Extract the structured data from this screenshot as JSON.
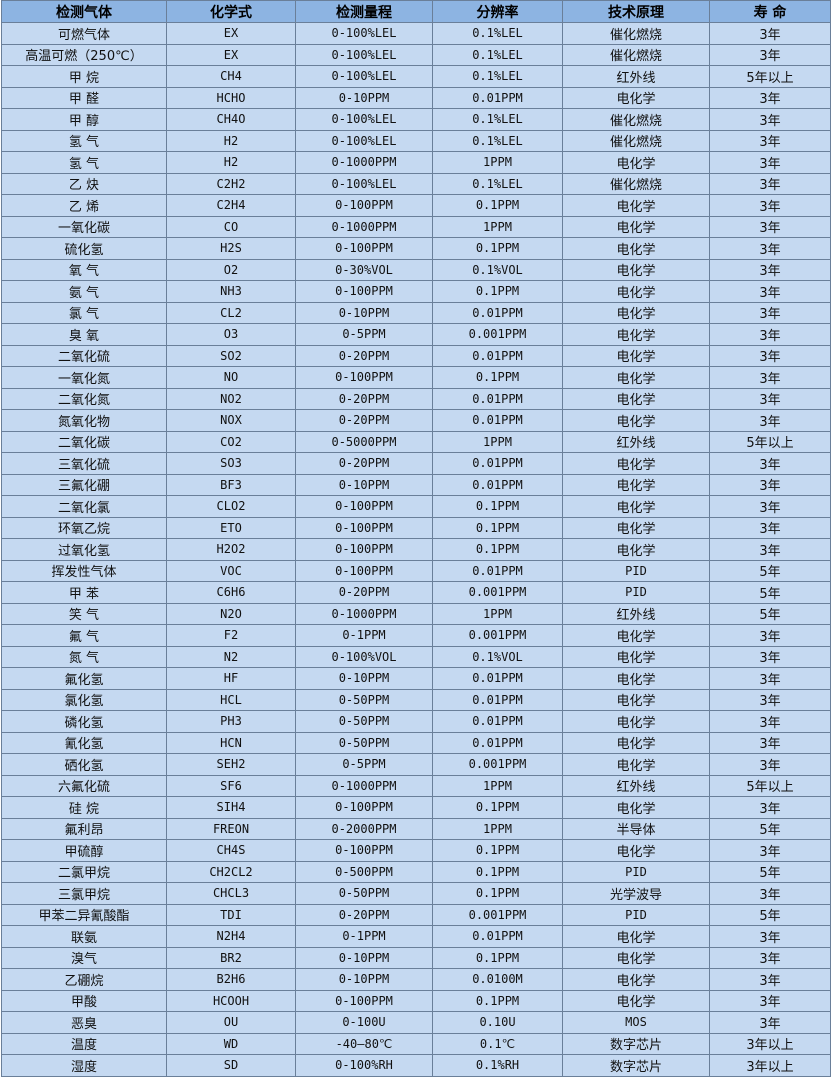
{
  "table": {
    "headers": [
      "检测气体",
      "化学式",
      "检测量程",
      "分辨率",
      "技术原理",
      "寿 命"
    ],
    "rows": [
      [
        "可燃气体",
        "EX",
        "0-100%LEL",
        "0.1%LEL",
        "催化燃烧",
        "3年"
      ],
      [
        "高温可燃（250℃）",
        "EX",
        "0-100%LEL",
        "0.1%LEL",
        "催化燃烧",
        "3年"
      ],
      [
        "甲 烷",
        "CH4",
        "0-100%LEL",
        "0.1%LEL",
        "红外线",
        "5年以上"
      ],
      [
        "甲 醛",
        "HCHO",
        "0-10PPM",
        "0.01PPM",
        "电化学",
        "3年"
      ],
      [
        "甲 醇",
        "CH4O",
        "0-100%LEL",
        "0.1%LEL",
        "催化燃烧",
        "3年"
      ],
      [
        "氢 气",
        "H2",
        "0-100%LEL",
        "0.1%LEL",
        "催化燃烧",
        "3年"
      ],
      [
        "氢 气",
        "H2",
        "0-1000PPM",
        "1PPM",
        "电化学",
        "3年"
      ],
      [
        "乙 炔",
        "C2H2",
        "0-100%LEL",
        "0.1%LEL",
        "催化燃烧",
        "3年"
      ],
      [
        "乙 烯",
        "C2H4",
        "0-100PPM",
        "0.1PPM",
        "电化学",
        "3年"
      ],
      [
        "一氧化碳",
        "CO",
        "0-1000PPM",
        "1PPM",
        "电化学",
        "3年"
      ],
      [
        "硫化氢",
        "H2S",
        "0-100PPM",
        "0.1PPM",
        "电化学",
        "3年"
      ],
      [
        "氧 气",
        "O2",
        "0-30%VOL",
        "0.1%VOL",
        "电化学",
        "3年"
      ],
      [
        "氨 气",
        "NH3",
        "0-100PPM",
        "0.1PPM",
        "电化学",
        "3年"
      ],
      [
        "氯 气",
        "CL2",
        "0-10PPM",
        "0.01PPM",
        "电化学",
        "3年"
      ],
      [
        "臭 氧",
        "O3",
        "0-5PPM",
        "0.001PPM",
        "电化学",
        "3年"
      ],
      [
        "二氧化硫",
        "SO2",
        "0-20PPM",
        "0.01PPM",
        "电化学",
        "3年"
      ],
      [
        "一氧化氮",
        "NO",
        "0-100PPM",
        "0.1PPM",
        "电化学",
        "3年"
      ],
      [
        "二氧化氮",
        "NO2",
        "0-20PPM",
        "0.01PPM",
        "电化学",
        "3年"
      ],
      [
        "氮氧化物",
        "NOX",
        "0-20PPM",
        "0.01PPM",
        "电化学",
        "3年"
      ],
      [
        "二氧化碳",
        "CO2",
        "0-5000PPM",
        "1PPM",
        "红外线",
        "5年以上"
      ],
      [
        "三氧化硫",
        "SO3",
        "0-20PPM",
        "0.01PPM",
        "电化学",
        "3年"
      ],
      [
        "三氟化硼",
        "BF3",
        "0-10PPM",
        "0.01PPM",
        "电化学",
        "3年"
      ],
      [
        "二氧化氯",
        "CLO2",
        "0-100PPM",
        "0.1PPM",
        "电化学",
        "3年"
      ],
      [
        "环氧乙烷",
        "ETO",
        "0-100PPM",
        "0.1PPM",
        "电化学",
        "3年"
      ],
      [
        "过氧化氢",
        "H2O2",
        "0-100PPM",
        "0.1PPM",
        "电化学",
        "3年"
      ],
      [
        "挥发性气体",
        "VOC",
        "0-100PPM",
        "0.01PPM",
        "PID",
        "5年"
      ],
      [
        "甲 苯",
        "C6H6",
        "0-20PPM",
        "0.001PPM",
        "PID",
        "5年"
      ],
      [
        "笑 气",
        "N2O",
        "0-1000PPM",
        "1PPM",
        "红外线",
        "5年"
      ],
      [
        "氟 气",
        "F2",
        "0-1PPM",
        "0.001PPM",
        "电化学",
        "3年"
      ],
      [
        "氮 气",
        "N2",
        "0-100%VOL",
        "0.1%VOL",
        "电化学",
        "3年"
      ],
      [
        "氟化氢",
        "HF",
        "0-10PPM",
        "0.01PPM",
        "电化学",
        "3年"
      ],
      [
        "氯化氢",
        "HCL",
        "0-50PPM",
        "0.01PPM",
        "电化学",
        "3年"
      ],
      [
        "磷化氢",
        "PH3",
        "0-50PPM",
        "0.01PPM",
        "电化学",
        "3年"
      ],
      [
        "氰化氢",
        "HCN",
        "0-50PPM",
        "0.01PPM",
        "电化学",
        "3年"
      ],
      [
        "硒化氢",
        "SEH2",
        "0-5PPM",
        "0.001PPM",
        "电化学",
        "3年"
      ],
      [
        "六氟化硫",
        "SF6",
        "0-1000PPM",
        "1PPM",
        "红外线",
        "5年以上"
      ],
      [
        "硅 烷",
        "SIH4",
        "0-100PPM",
        "0.1PPM",
        "电化学",
        "3年"
      ],
      [
        "氟利昂",
        "FREON",
        "0-2000PPM",
        "1PPM",
        "半导体",
        "5年"
      ],
      [
        "甲硫醇",
        "CH4S",
        "0-100PPM",
        "0.1PPM",
        "电化学",
        "3年"
      ],
      [
        "二氯甲烷",
        "CH2CL2",
        "0-500PPM",
        "0.1PPM",
        "PID",
        "5年"
      ],
      [
        "三氯甲烷",
        "CHCL3",
        "0-50PPM",
        "0.1PPM",
        "光学波导",
        "3年"
      ],
      [
        "甲苯二异氰酸酯",
        "TDI",
        "0-20PPM",
        "0.001PPM",
        "PID",
        "5年"
      ],
      [
        "联氨",
        "N2H4",
        "0-1PPM",
        "0.01PPM",
        "电化学",
        "3年"
      ],
      [
        "溴气",
        "BR2",
        "0-10PPM",
        "0.1PPM",
        "电化学",
        "3年"
      ],
      [
        "乙硼烷",
        "B2H6",
        "0-10PPM",
        "0.0100M",
        "电化学",
        "3年"
      ],
      [
        "甲酸",
        "HCOOH",
        "0-100PPM",
        "0.1PPM",
        "电化学",
        "3年"
      ],
      [
        "恶臭",
        "OU",
        "0-100U",
        "0.10U",
        "MOS",
        "3年"
      ],
      [
        "温度",
        "WD",
        "-40—80℃",
        "0.1℃",
        "数字芯片",
        "3年以上"
      ],
      [
        "湿度",
        "SD",
        "0-100%RH",
        "0.1%RH",
        "数字芯片",
        "3年以上"
      ]
    ]
  },
  "colors": {
    "header_bg": "#8db4e2",
    "row_bg": "#c5d9f1",
    "border": "#6a7f99"
  }
}
